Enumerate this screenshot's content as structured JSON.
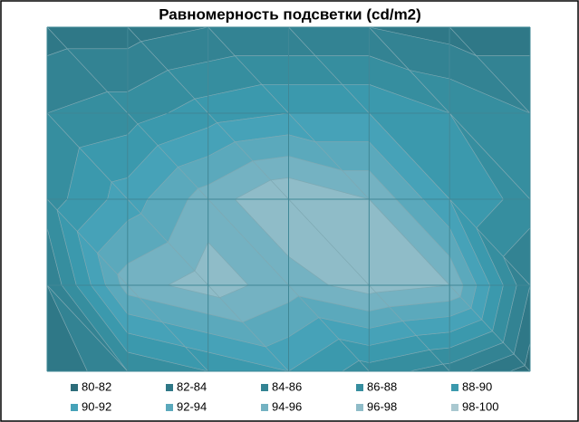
{
  "chart_data": {
    "type": "contour",
    "title": "Равномерность подсветки (cd/m2)",
    "levels": [
      80,
      82,
      84,
      86,
      88,
      90,
      92,
      94,
      96,
      98,
      100
    ],
    "series": [
      {
        "name": "80-82",
        "color": "#2d6d7a"
      },
      {
        "name": "82-84",
        "color": "#2f7887"
      },
      {
        "name": "84-86",
        "color": "#338393"
      },
      {
        "name": "86-88",
        "color": "#368e9f"
      },
      {
        "name": "88-90",
        "color": "#3b99ad"
      },
      {
        "name": "90-92",
        "color": "#46a2b8"
      },
      {
        "name": "92-94",
        "color": "#5ba9bc"
      },
      {
        "name": "94-96",
        "color": "#74b2c2"
      },
      {
        "name": "96-98",
        "color": "#8fbcc8"
      },
      {
        "name": "98-100",
        "color": "#a9c8d0"
      }
    ],
    "z": [
      [
        83,
        83,
        84,
        84,
        84,
        83,
        83
      ],
      [
        86,
        87,
        89,
        90,
        90,
        88,
        86
      ],
      [
        87,
        91,
        95,
        98,
        96,
        90,
        87
      ],
      [
        84,
        95,
        97,
        95,
        97,
        96,
        84
      ],
      [
        82,
        86,
        88,
        90,
        87,
        85,
        81
      ]
    ],
    "grid": true
  }
}
